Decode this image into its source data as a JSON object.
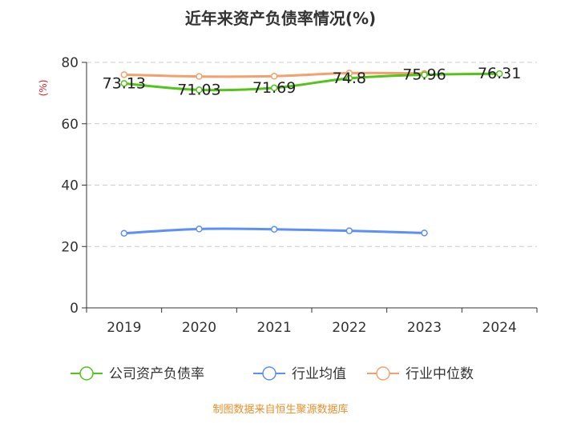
{
  "chart_data": {
    "type": "line",
    "title": "近年来资产负债率情况(%)",
    "ylabel": "(%)",
    "xlabel": "",
    "categories": [
      "2019",
      "2020",
      "2021",
      "2022",
      "2023",
      "2024"
    ],
    "ylim": [
      0,
      80
    ],
    "yticks": [
      0,
      20,
      40,
      60,
      80
    ],
    "grid": true,
    "legend_position": "bottom",
    "series": [
      {
        "name": "公司资产负债率",
        "color": "#52c41a",
        "values": [
          73.13,
          71.03,
          71.69,
          74.8,
          75.96,
          76.31
        ],
        "labels": [
          "73.13",
          "71.03",
          "71.69",
          "74.8",
          "75.96",
          "76.31"
        ]
      },
      {
        "name": "行业均值",
        "color": "#5b8ff9",
        "values": [
          24.3,
          25.7,
          25.6,
          25.1,
          24.4,
          null
        ]
      },
      {
        "name": "行业中位数",
        "color": "#f4a06d",
        "values": [
          76.0,
          75.4,
          75.5,
          76.5,
          76.4,
          null
        ]
      }
    ]
  },
  "source": "制图数据来自恒生聚源数据库",
  "colors": {
    "axis": "#333333",
    "grid": "#cccccc",
    "ylabel": "#e02020",
    "source": "#e8902a"
  }
}
